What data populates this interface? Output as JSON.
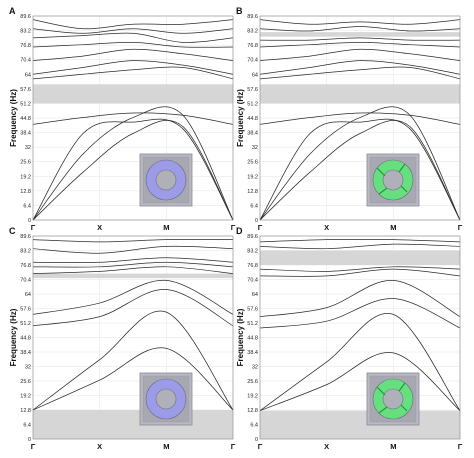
{
  "chart_data": [
    {
      "panel": "A",
      "type": "line",
      "ylabel": "Frequency (Hz)",
      "yticks": [
        "0",
        "6.4",
        "12.8",
        "19.2",
        "25.6",
        "32",
        "38.4",
        "44.8",
        "51.2",
        "57.6",
        "64",
        "70.4",
        "76.8",
        "83.2",
        "89.6"
      ],
      "ylim": [
        0,
        89.6
      ],
      "xticks": [
        "Γ",
        "X",
        "M",
        "Γ"
      ],
      "band_gaps": [
        [
          51.2,
          59.6
        ]
      ],
      "inset_color": "#9b9be8",
      "series": [
        {
          "values": [
            0,
            21,
            38,
            41,
            0
          ]
        },
        {
          "values": [
            0,
            29,
            45,
            46,
            0
          ]
        },
        {
          "values": [
            0,
            38,
            43,
            40,
            0
          ]
        },
        {
          "values": [
            42,
            45,
            47,
            46,
            42
          ]
        },
        {
          "values": [
            62,
            64,
            66,
            67,
            62
          ]
        },
        {
          "values": [
            64,
            67,
            70,
            68,
            64
          ]
        },
        {
          "values": [
            70,
            72,
            75,
            73,
            70
          ]
        },
        {
          "values": [
            76,
            77,
            78,
            76,
            76
          ]
        },
        {
          "values": [
            80,
            81,
            82,
            78,
            80
          ]
        },
        {
          "values": [
            84,
            82,
            84,
            82,
            84
          ]
        },
        {
          "values": [
            88,
            84,
            86,
            86,
            88
          ]
        }
      ]
    },
    {
      "panel": "B",
      "type": "line",
      "ylabel": "Frequency (Hz)",
      "yticks": [
        "0",
        "6.4",
        "12.8",
        "19.2",
        "25.6",
        "32",
        "38.4",
        "44.8",
        "51.2",
        "57.6",
        "64",
        "70.4",
        "76.8",
        "83.2",
        "89.6"
      ],
      "ylim": [
        0,
        89.6
      ],
      "xticks": [
        "Γ",
        "X",
        "M",
        "Γ"
      ],
      "band_gaps": [
        [
          51.2,
          59.6
        ],
        [
          80.5,
          82.5
        ]
      ],
      "inset_color": "#66e07f",
      "series": [
        {
          "values": [
            0,
            21,
            38,
            41,
            0
          ]
        },
        {
          "values": [
            0,
            29,
            45,
            46,
            0
          ]
        },
        {
          "values": [
            0,
            38,
            43,
            40,
            0
          ]
        },
        {
          "values": [
            42,
            45,
            47,
            46,
            42
          ]
        },
        {
          "values": [
            62,
            64,
            66,
            67,
            62
          ]
        },
        {
          "values": [
            64,
            67,
            70,
            68,
            64
          ]
        },
        {
          "values": [
            70,
            72,
            75,
            73,
            70
          ]
        },
        {
          "values": [
            76,
            77,
            78,
            77,
            76
          ]
        },
        {
          "values": [
            79,
            79,
            80,
            79,
            79
          ]
        },
        {
          "values": [
            84,
            83,
            85,
            83,
            84
          ]
        },
        {
          "values": [
            88,
            86,
            87,
            86,
            88
          ]
        }
      ]
    },
    {
      "panel": "C",
      "type": "line",
      "ylabel": "Frequency (Hz)",
      "yticks": [
        "0",
        "6.4",
        "12.8",
        "19.2",
        "25.6",
        "32",
        "38.4",
        "44.8",
        "51.2",
        "57.6",
        "64",
        "70.4",
        "76.8",
        "83.2",
        "89.6"
      ],
      "ylim": [
        0,
        89.6
      ],
      "xticks": [
        "Γ",
        "X",
        "M",
        "Γ"
      ],
      "band_gaps": [
        [
          0,
          12.8
        ],
        [
          71,
          73
        ]
      ],
      "inset_color": "#9b9be8",
      "series": [
        {
          "values": [
            12.8,
            26,
            40,
            12.8
          ]
        },
        {
          "values": [
            12.8,
            35,
            56,
            12.8
          ]
        },
        {
          "values": [
            50,
            54,
            66,
            50
          ]
        },
        {
          "values": [
            55,
            60,
            70,
            55
          ]
        },
        {
          "values": [
            73,
            74,
            76,
            73
          ]
        },
        {
          "values": [
            76,
            76,
            78,
            76
          ]
        },
        {
          "values": [
            78,
            78,
            80,
            78
          ]
        },
        {
          "values": [
            84,
            82,
            85,
            84
          ]
        },
        {
          "values": [
            88,
            87,
            88,
            88
          ]
        }
      ]
    },
    {
      "panel": "D",
      "type": "line",
      "ylabel": "Frequency (Hz)",
      "yticks": [
        "0",
        "6.4",
        "12.8",
        "19.2",
        "25.6",
        "32",
        "38.4",
        "44.8",
        "51.2",
        "57.6",
        "64",
        "70.4",
        "76.8",
        "83.2",
        "89.6"
      ],
      "ylim": [
        0,
        89.6
      ],
      "xticks": [
        "Γ",
        "X",
        "M",
        "Γ"
      ],
      "band_gaps": [
        [
          0,
          12.5
        ],
        [
          76.8,
          83.2
        ]
      ],
      "inset_color": "#66e07f",
      "series": [
        {
          "values": [
            12.5,
            24,
            38,
            12.5
          ]
        },
        {
          "values": [
            12.5,
            34,
            55,
            12.5
          ]
        },
        {
          "values": [
            49,
            52,
            62,
            49
          ]
        },
        {
          "values": [
            54,
            58,
            70,
            54
          ]
        },
        {
          "values": [
            72,
            72,
            75,
            72
          ]
        },
        {
          "values": [
            75,
            74,
            76,
            75
          ]
        },
        {
          "values": [
            85,
            84,
            86,
            85
          ]
        },
        {
          "values": [
            87,
            88,
            88,
            87
          ]
        }
      ]
    }
  ]
}
